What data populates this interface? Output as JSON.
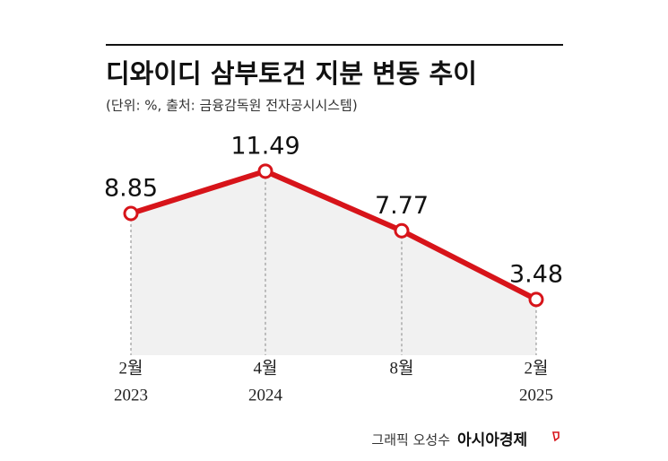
{
  "chart_data": {
    "type": "line",
    "title": "디와이디 삼부토건 지분 변동 추이",
    "subtitle": "(단위: %, 출처: 금융감독원 전자공시시스템)",
    "categories": [
      [
        "2월",
        "2023"
      ],
      [
        "4월",
        "2024"
      ],
      [
        "8월"
      ],
      [
        "2월",
        "2025"
      ]
    ],
    "values": [
      8.85,
      11.49,
      7.77,
      3.48
    ],
    "color": "#d7141a",
    "ylim": [
      0,
      14
    ],
    "credit": "그래픽 오성수",
    "brand": "아시아경제"
  }
}
